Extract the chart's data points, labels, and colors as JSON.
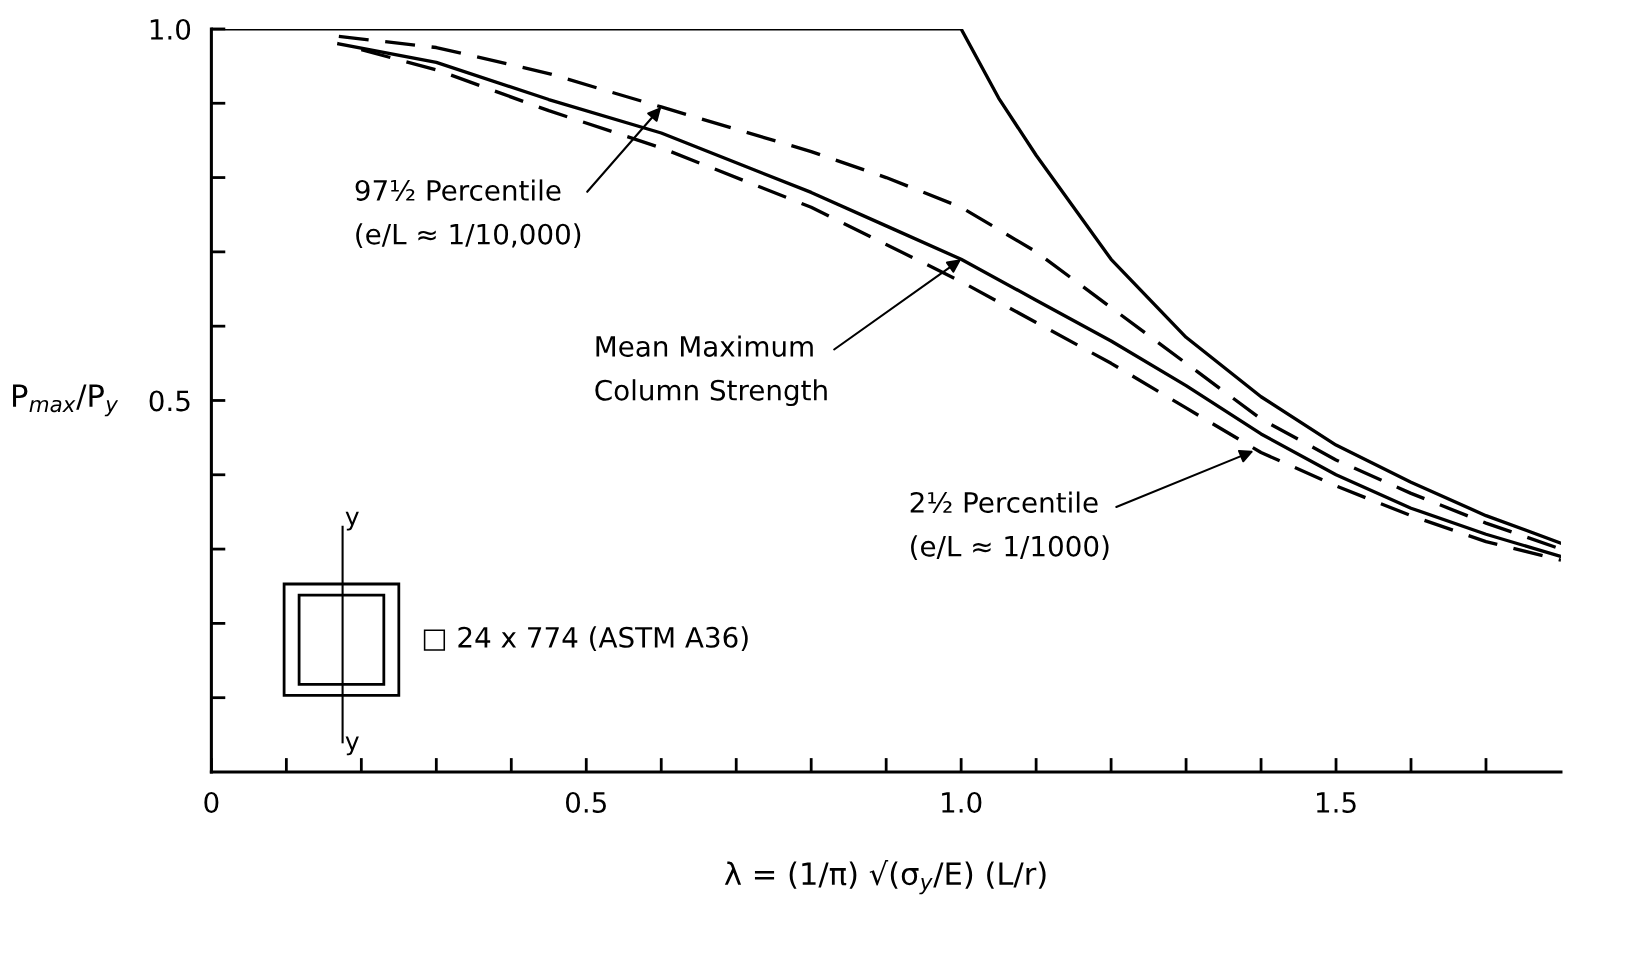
{
  "chart_data": {
    "type": "line",
    "xlabel": "λ = (1/π) √(σ$_{y}$/E) (L/r)",
    "ylabel": "P$_{max}$/P$_{y}$",
    "xlim": [
      0,
      1.8
    ],
    "ylim": [
      0,
      1.0
    ],
    "xticks": [
      0,
      {
        "value": 0.1,
        "label": null
      },
      {
        "value": 0.2,
        "label": null
      },
      {
        "value": 0.3,
        "label": null
      },
      {
        "value": 0.4,
        "label": null
      },
      0.5,
      {
        "value": 0.6,
        "label": null
      },
      {
        "value": 0.7,
        "label": null
      },
      {
        "value": 0.8,
        "label": null
      },
      {
        "value": 0.9,
        "label": null
      },
      {
        "value": 1.0,
        "label": "1.0"
      },
      {
        "value": 1.1,
        "label": null
      },
      {
        "value": 1.2,
        "label": null
      },
      {
        "value": 1.3,
        "label": null
      },
      {
        "value": 1.4,
        "label": null
      },
      1.5,
      {
        "value": 1.6,
        "label": null
      },
      {
        "value": 1.7,
        "label": null
      }
    ],
    "yticks": [
      {
        "value": 0.1,
        "label": null
      },
      {
        "value": 0.2,
        "label": null
      },
      {
        "value": 0.3,
        "label": null
      },
      {
        "value": 0.4,
        "label": null
      },
      0.5,
      {
        "value": 0.6,
        "label": null
      },
      {
        "value": 0.7,
        "label": null
      },
      {
        "value": 0.8,
        "label": null
      },
      {
        "value": 0.9,
        "label": null
      },
      {
        "value": 1.0,
        "label": "1.0"
      }
    ],
    "grid": false,
    "legend": false,
    "marker": "none",
    "series": [
      {
        "color": "#000000",
        "line_style": "solid",
        "x": [
          0,
          1.0,
          1.05,
          1.1,
          1.2,
          1.3,
          1.4,
          1.5,
          1.6,
          1.7,
          1.8
        ],
        "values": [
          1.0,
          1.0,
          0.907,
          0.83,
          0.69,
          0.585,
          0.505,
          0.44,
          0.39,
          0.345,
          0.308
        ]
      },
      {
        "color": "#000000",
        "line_style": "dashed",
        "x": [
          0.17,
          0.3,
          0.45,
          0.6,
          0.8,
          0.9,
          1.0,
          1.1,
          1.2,
          1.3,
          1.4,
          1.5,
          1.6,
          1.7,
          1.8
        ],
        "values": [
          0.99,
          0.975,
          0.94,
          0.895,
          0.835,
          0.8,
          0.76,
          0.7,
          0.625,
          0.55,
          0.475,
          0.42,
          0.375,
          0.335,
          0.3
        ]
      },
      {
        "color": "#000000",
        "line_style": "solid",
        "x": [
          0.17,
          0.3,
          0.45,
          0.6,
          0.8,
          0.9,
          1.0,
          1.1,
          1.2,
          1.3,
          1.4,
          1.5,
          1.6,
          1.7,
          1.8
        ],
        "values": [
          0.98,
          0.955,
          0.905,
          0.86,
          0.78,
          0.735,
          0.69,
          0.635,
          0.58,
          0.52,
          0.455,
          0.4,
          0.355,
          0.32,
          0.29
        ]
      },
      {
        "color": "#000000",
        "line_style": "dashed",
        "x": [
          0.2,
          0.3,
          0.45,
          0.6,
          0.8,
          0.9,
          1.0,
          1.1,
          1.2,
          1.3,
          1.4,
          1.5,
          1.6,
          1.7,
          1.8
        ],
        "values": [
          0.972,
          0.945,
          0.89,
          0.84,
          0.76,
          0.71,
          0.66,
          0.605,
          0.55,
          0.49,
          0.43,
          0.385,
          0.345,
          0.31,
          0.285
        ]
      }
    ],
    "annotations": [
      {
        "text": "97½ Percentile\n(e/L ≈ 1/10,000)",
        "x": 0.6,
        "y": 0.895
      },
      {
        "text": "Mean Maximum\nColumn Strength",
        "x": 1.0,
        "y": 0.69
      },
      {
        "text": "2½ Percentile\n(e/L ≈ 1/1000)",
        "x": 1.39,
        "y": 0.432
      },
      "□ 24 x 774 (ASTM A36)",
      "y",
      "y"
    ]
  }
}
